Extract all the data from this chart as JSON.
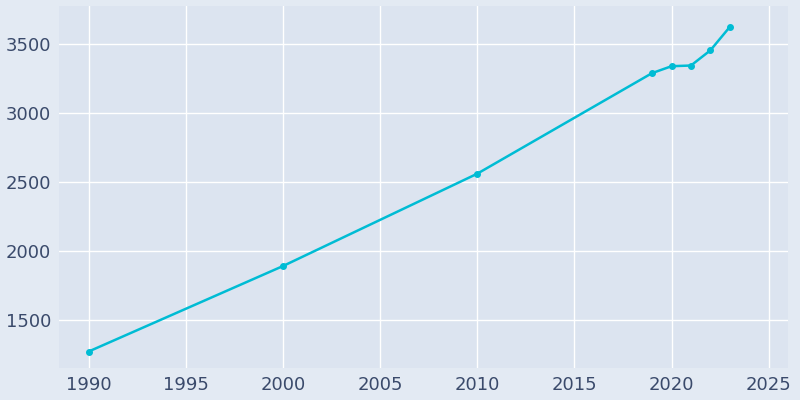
{
  "years": [
    1990,
    2000,
    2010,
    2019,
    2020,
    2021,
    2022,
    2023
  ],
  "population": [
    1270,
    1890,
    2560,
    3290,
    3340,
    3345,
    3455,
    3625
  ],
  "line_color": "#00BCD4",
  "marker": "o",
  "marker_size": 4,
  "line_width": 1.8,
  "background_color": "#E3EAF3",
  "plot_background": "#DCE4F0",
  "grid_color": "#ffffff",
  "xlabel": "",
  "ylabel": "",
  "xlim": [
    1988.5,
    2026
  ],
  "ylim": [
    1150,
    3780
  ],
  "xticks": [
    1990,
    1995,
    2000,
    2005,
    2010,
    2015,
    2020,
    2025
  ],
  "yticks": [
    1500,
    2000,
    2500,
    3000,
    3500
  ],
  "tick_color": "#3a4a6b",
  "tick_fontsize": 13
}
